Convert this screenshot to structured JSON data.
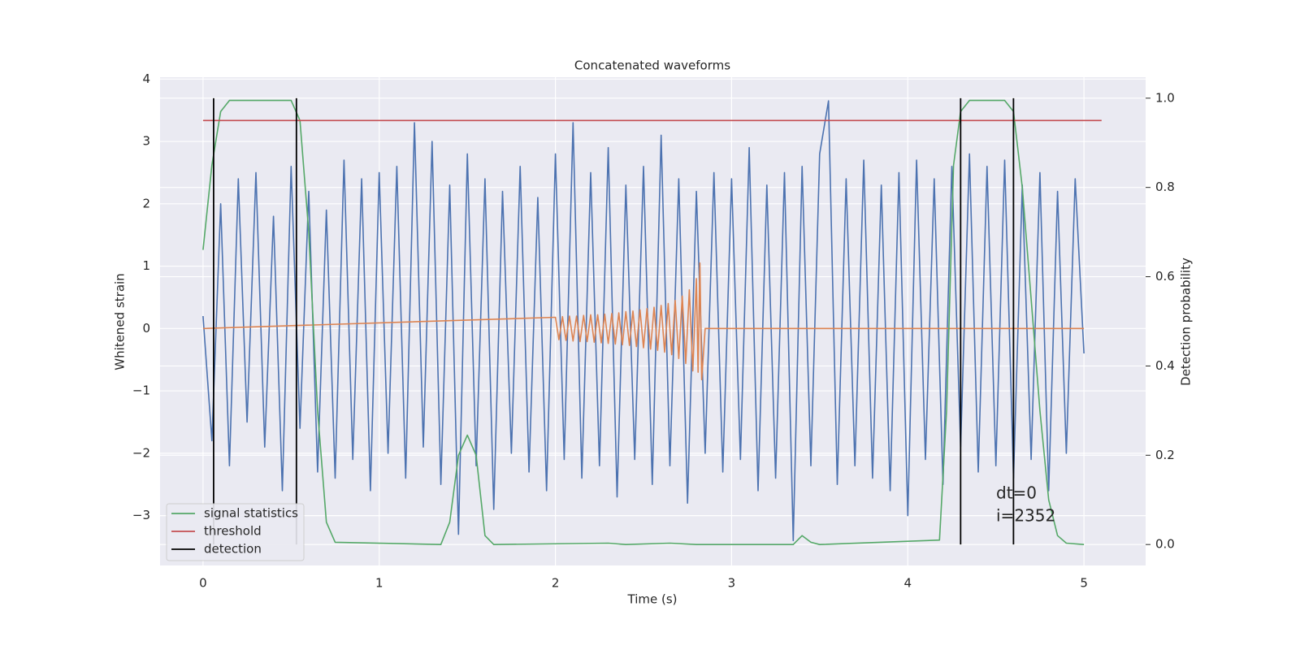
{
  "chart_data": {
    "type": "line",
    "title": "Concatenated waveforms",
    "xlabel": "Time (s)",
    "ylabel": "Whitened strain",
    "y2label": "Detection probability",
    "xlim": [
      -0.244,
      5.35
    ],
    "ylim": [
      -3.8,
      4.03
    ],
    "y2lim": [
      -0.047,
      1.047
    ],
    "xticks": [
      0,
      1,
      2,
      3,
      4,
      5
    ],
    "yticks": [
      {
        "value": -3,
        "label": "−3"
      },
      {
        "value": -2,
        "label": "−2"
      },
      {
        "value": -1,
        "label": "−1"
      },
      0,
      1,
      2,
      3,
      4
    ],
    "y2ticks": [
      {
        "value": 0,
        "label": "0.0"
      },
      {
        "value": 0.2,
        "label": "0.2"
      },
      {
        "value": 0.4,
        "label": "0.4"
      },
      {
        "value": 0.6,
        "label": "0.6"
      },
      {
        "value": 0.8,
        "label": "0.8"
      },
      {
        "value": 1.0,
        "label": "1.0"
      }
    ],
    "grid": true,
    "legend": "lower left",
    "annotations": [
      "dt=0",
      "i=2352"
    ],
    "series": [
      {
        "color": "#4c72b0",
        "x": [
          0,
          0.05,
          0.1,
          0.15,
          0.2,
          0.25,
          0.3,
          0.35,
          0.4,
          0.45,
          0.5,
          0.55,
          0.6,
          0.65,
          0.7,
          0.75,
          0.8,
          0.85,
          0.9,
          0.95,
          1.0,
          1.05,
          1.1,
          1.15,
          1.2,
          1.25,
          1.3,
          1.35,
          1.4,
          1.45,
          1.5,
          1.55,
          1.6,
          1.65,
          1.7,
          1.75,
          1.8,
          1.85,
          1.9,
          1.95,
          2.0,
          2.05,
          2.1,
          2.15,
          2.2,
          2.25,
          2.3,
          2.35,
          2.4,
          2.45,
          2.5,
          2.55,
          2.6,
          2.65,
          2.7,
          2.75,
          2.8,
          2.85,
          2.9,
          2.95,
          3.0,
          3.05,
          3.1,
          3.15,
          3.2,
          3.25,
          3.3,
          3.35,
          3.4,
          3.45,
          3.5,
          3.55,
          3.6,
          3.65,
          3.7,
          3.75,
          3.8,
          3.85,
          3.9,
          3.95,
          4.0,
          4.05,
          4.1,
          4.15,
          4.2,
          4.25,
          4.3,
          4.35,
          4.4,
          4.45,
          4.5,
          4.55,
          4.6,
          4.65,
          4.7,
          4.75,
          4.8,
          4.85,
          4.9,
          4.95,
          5.0
        ],
        "values": [
          0.2,
          -1.8,
          2.0,
          -2.2,
          2.4,
          -1.5,
          2.5,
          -1.9,
          1.8,
          -2.6,
          2.6,
          -1.6,
          2.2,
          -2.3,
          1.9,
          -2.4,
          2.7,
          -2.1,
          2.4,
          -2.6,
          2.5,
          -2.0,
          2.6,
          -2.4,
          3.3,
          -1.9,
          3.0,
          -2.5,
          2.3,
          -3.3,
          2.8,
          -2.2,
          2.4,
          -2.9,
          2.2,
          -2.0,
          2.6,
          -2.3,
          2.1,
          -2.6,
          2.8,
          -2.1,
          3.3,
          -2.4,
          2.5,
          -2.2,
          2.9,
          -2.7,
          2.3,
          -2.1,
          2.6,
          -2.5,
          3.1,
          -2.2,
          2.4,
          -2.8,
          2.2,
          -2.0,
          2.5,
          -2.3,
          2.4,
          -2.1,
          2.9,
          -2.6,
          2.3,
          -2.4,
          2.5,
          -3.4,
          2.6,
          -2.2,
          2.8,
          3.65,
          -2.5,
          2.4,
          -2.2,
          2.7,
          -2.4,
          2.3,
          -2.6,
          2.5,
          -3.0,
          2.7,
          -2.1,
          2.4,
          -2.5,
          2.6,
          -1.9,
          2.8,
          -2.3,
          2.6,
          -2.2,
          2.7,
          -2.4,
          2.3,
          -2.1,
          2.5,
          -2.6,
          2.2,
          -2.0,
          2.4,
          -0.4
        ]
      },
      {
        "color": "#dd8452",
        "x": [
          0,
          2.0,
          2.02,
          2.04,
          2.06,
          2.08,
          2.1,
          2.12,
          2.14,
          2.16,
          2.18,
          2.2,
          2.22,
          2.24,
          2.26,
          2.28,
          2.3,
          2.32,
          2.34,
          2.36,
          2.38,
          2.4,
          2.42,
          2.44,
          2.46,
          2.48,
          2.5,
          2.52,
          2.54,
          2.56,
          2.58,
          2.6,
          2.62,
          2.64,
          2.66,
          2.68,
          2.7,
          2.72,
          2.74,
          2.76,
          2.78,
          2.8,
          2.81,
          2.82,
          2.83,
          2.85,
          5.0
        ],
        "values": [
          0,
          0.18,
          -0.18,
          0.19,
          -0.19,
          0.2,
          -0.2,
          0.2,
          -0.21,
          0.21,
          -0.21,
          0.22,
          -0.22,
          0.22,
          -0.23,
          0.23,
          -0.24,
          0.24,
          -0.25,
          0.25,
          -0.26,
          0.27,
          -0.27,
          0.28,
          -0.29,
          0.3,
          -0.31,
          0.32,
          -0.33,
          0.34,
          -0.35,
          0.37,
          -0.38,
          0.4,
          -0.42,
          0.45,
          -0.48,
          0.52,
          -0.56,
          0.62,
          -0.68,
          0.8,
          -0.7,
          1.05,
          -0.82,
          0,
          0
        ]
      },
      {
        "name": "signal statistics",
        "color": "#55a868",
        "axis": "y2",
        "x": [
          0,
          0.05,
          0.1,
          0.15,
          0.5,
          0.55,
          0.6,
          0.65,
          0.7,
          0.75,
          1.35,
          1.4,
          1.45,
          1.5,
          1.55,
          1.6,
          1.65,
          2.3,
          2.4,
          2.65,
          2.8,
          3.35,
          3.4,
          3.45,
          3.5,
          4.18,
          4.22,
          4.26,
          4.3,
          4.35,
          4.55,
          4.6,
          4.65,
          4.7,
          4.75,
          4.8,
          4.85,
          4.9,
          5.0
        ],
        "values": [
          0.66,
          0.85,
          0.97,
          0.995,
          0.995,
          0.95,
          0.7,
          0.3,
          0.05,
          0.005,
          0,
          0.05,
          0.2,
          0.245,
          0.2,
          0.02,
          0,
          0.003,
          0,
          0.003,
          0,
          0,
          0.02,
          0.005,
          0,
          0.01,
          0.3,
          0.85,
          0.97,
          0.995,
          0.995,
          0.97,
          0.8,
          0.55,
          0.3,
          0.1,
          0.02,
          0.003,
          0
        ]
      },
      {
        "name": "threshold",
        "color": "#c44e52",
        "axis": "y2",
        "x": [
          0,
          5.1
        ],
        "values": [
          0.95,
          0.95
        ]
      }
    ],
    "detection": {
      "name": "detection",
      "color": "#000000",
      "x": [
        0.06,
        0.53,
        4.3,
        4.6
      ]
    }
  }
}
